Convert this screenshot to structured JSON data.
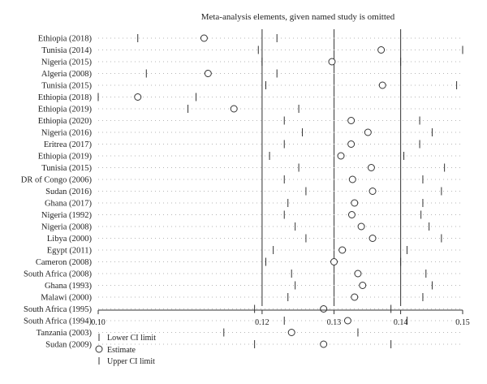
{
  "chart_data": {
    "type": "forest",
    "title": "Meta-analysis elements, given named study is omitted",
    "x_scale": "log",
    "xlim": [
      0.1,
      0.15
    ],
    "x_ticks": [
      0.1,
      0.12,
      0.13,
      0.14,
      0.15
    ],
    "x_tick_labels": [
      "0.10",
      "0.12",
      "0.13",
      "0.14",
      "0.15"
    ],
    "reference_lines": [
      0.12,
      0.13,
      0.14
    ],
    "grid": false,
    "legend_position": "bottom-left",
    "legend": {
      "lower": "Lower CI limit",
      "estimate": "Estimate",
      "upper": "Upper CI limit"
    },
    "studies": [
      {
        "label": "Ethiopia (2018)",
        "lower": 0.1045,
        "estimate": 0.1125,
        "upper": 0.122
      },
      {
        "label": "Tunisia (2014)",
        "lower": 0.1195,
        "estimate": 0.137,
        "upper": 0.15
      },
      {
        "label": "Nigeria (2015)",
        "lower": 0.12,
        "estimate": 0.1297,
        "upper": 0.14
      },
      {
        "label": "Algeria (2008)",
        "lower": 0.1055,
        "estimate": 0.113,
        "upper": 0.122
      },
      {
        "label": "Tunisia (2015)",
        "lower": 0.1205,
        "estimate": 0.1372,
        "upper": 0.149
      },
      {
        "label": "Ethiopia (2018)",
        "lower": 0.1,
        "estimate": 0.1045,
        "upper": 0.1115
      },
      {
        "label": "Ethiopia (2019)",
        "lower": 0.1105,
        "estimate": 0.1163,
        "upper": 0.125
      },
      {
        "label": "Ethiopia (2020)",
        "lower": 0.123,
        "estimate": 0.1325,
        "upper": 0.143
      },
      {
        "label": "Nigeria (2016)",
        "lower": 0.1255,
        "estimate": 0.135,
        "upper": 0.145
      },
      {
        "label": "Eritrea (2017)",
        "lower": 0.123,
        "estimate": 0.1325,
        "upper": 0.143
      },
      {
        "label": "Ethiopia (2019)",
        "lower": 0.121,
        "estimate": 0.131,
        "upper": 0.1405
      },
      {
        "label": "Tunisia (2015)",
        "lower": 0.125,
        "estimate": 0.1355,
        "upper": 0.147
      },
      {
        "label": "DR of Congo (2006)",
        "lower": 0.123,
        "estimate": 0.1327,
        "upper": 0.1435
      },
      {
        "label": "Sudan (2016)",
        "lower": 0.126,
        "estimate": 0.1357,
        "upper": 0.1465
      },
      {
        "label": "Ghana (2017)",
        "lower": 0.1235,
        "estimate": 0.133,
        "upper": 0.1435
      },
      {
        "label": "Nigeria (1992)",
        "lower": 0.123,
        "estimate": 0.1326,
        "upper": 0.1432
      },
      {
        "label": "Nigeria (2008)",
        "lower": 0.1245,
        "estimate": 0.134,
        "upper": 0.1445
      },
      {
        "label": "Libya (2000)",
        "lower": 0.126,
        "estimate": 0.1357,
        "upper": 0.1465
      },
      {
        "label": "Egypt (2011)",
        "lower": 0.1215,
        "estimate": 0.1312,
        "upper": 0.141
      },
      {
        "label": "Cameron (2008)",
        "lower": 0.1205,
        "estimate": 0.13,
        "upper": 0.14
      },
      {
        "label": "South Africa (2008)",
        "lower": 0.124,
        "estimate": 0.1335,
        "upper": 0.144
      },
      {
        "label": "Ghana (1993)",
        "lower": 0.1245,
        "estimate": 0.1342,
        "upper": 0.145
      },
      {
        "label": "Malawi (2000)",
        "lower": 0.1235,
        "estimate": 0.133,
        "upper": 0.1435
      },
      {
        "label": "South Africa (1995)",
        "lower": 0.119,
        "estimate": 0.1285,
        "upper": 0.1385
      },
      {
        "label": "South Africa (1994)",
        "lower": 0.123,
        "estimate": 0.132,
        "upper": 0.141
      },
      {
        "label": "Tanzania (2003)",
        "lower": 0.115,
        "estimate": 0.124,
        "upper": 0.1335
      },
      {
        "label": "Sudan (2009)",
        "lower": 0.119,
        "estimate": 0.1285,
        "upper": 0.1385
      }
    ]
  }
}
